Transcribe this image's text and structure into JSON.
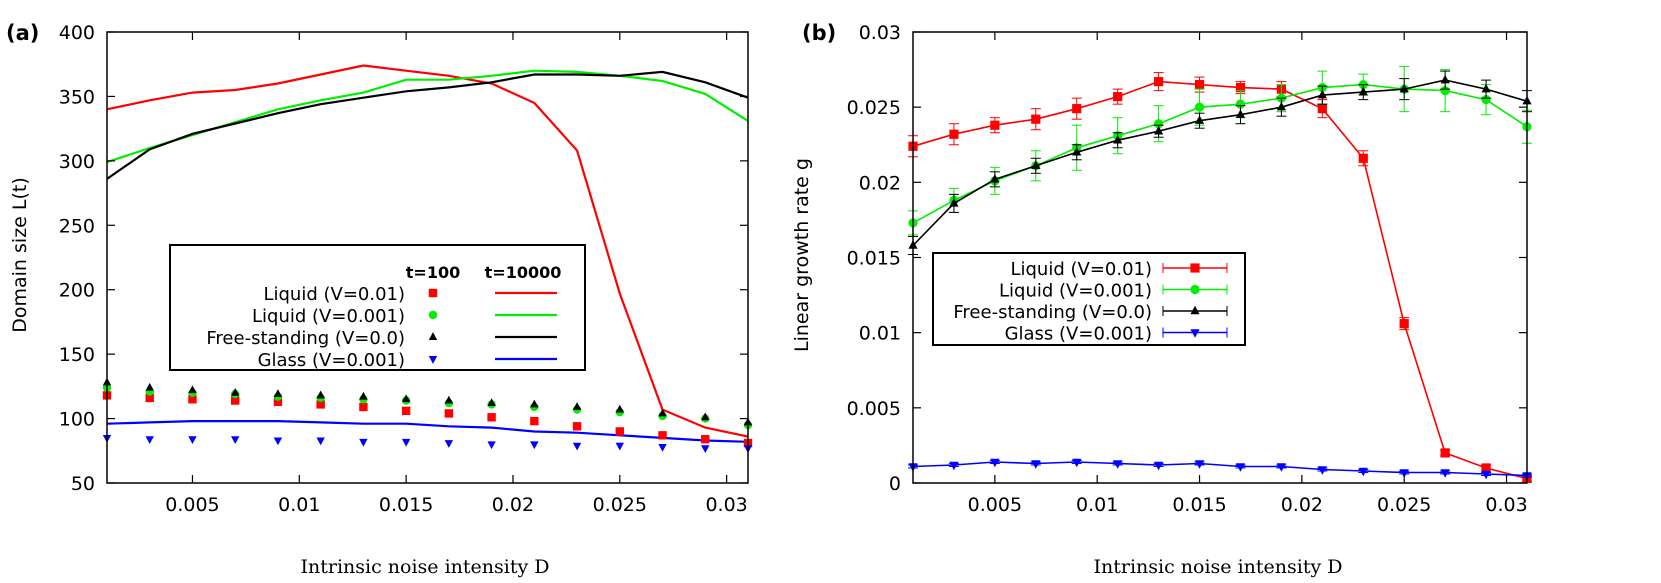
{
  "chart_data": [
    {
      "panel_label": "(a)",
      "type": "line",
      "xlabel": "Intrinsic noise intensity D",
      "ylabel": "Domain size L(t)",
      "xlim": [
        0.001,
        0.031
      ],
      "ylim": [
        50,
        400
      ],
      "xticks": [
        0.005,
        0.01,
        0.015,
        0.02,
        0.025,
        0.03
      ],
      "xtick_labels": [
        "0.005",
        "0.01",
        "0.015",
        "0.02",
        "0.025",
        "0.03"
      ],
      "yticks": [
        50,
        100,
        150,
        200,
        250,
        300,
        350,
        400
      ],
      "ytick_labels": [
        "50",
        "100",
        "150",
        "200",
        "250",
        "300",
        "350",
        "400"
      ],
      "legend_headers": {
        "points": "t=100",
        "lines": "t=10000"
      },
      "x_points": [
        0.001,
        0.003,
        0.005,
        0.007,
        0.009,
        0.011,
        0.013,
        0.015,
        0.017,
        0.019,
        0.021,
        0.023,
        0.025,
        0.027,
        0.029,
        0.031
      ],
      "x_lines": [
        0.001,
        0.003,
        0.005,
        0.007,
        0.009,
        0.011,
        0.013,
        0.015,
        0.017,
        0.019,
        0.021,
        0.023,
        0.025,
        0.027,
        0.029,
        0.031
      ],
      "series": [
        {
          "name": "Liquid (V=0.01)",
          "color": "#ff0000",
          "marker": "square",
          "points_t100": [
            118,
            116,
            115,
            114,
            113,
            111,
            109,
            106,
            104,
            101,
            98,
            94,
            90,
            87,
            84,
            81
          ],
          "line_t10000": [
            340,
            347,
            353,
            355,
            360,
            367,
            374,
            370,
            366,
            360,
            345,
            308,
            197,
            107,
            93,
            86
          ]
        },
        {
          "name": "Liquid (V=0.001)",
          "color": "#00ee00",
          "marker": "circle",
          "points_t100": [
            124,
            121,
            120,
            119,
            117,
            116,
            115,
            114,
            112,
            111,
            109,
            107,
            105,
            102,
            100,
            95
          ],
          "line_t10000": [
            299,
            310,
            320,
            330,
            340,
            347,
            353,
            363,
            363,
            366,
            370,
            369,
            366,
            362,
            352,
            331
          ]
        },
        {
          "name": "Free-standing (V=0.0)",
          "color": "#000000",
          "marker": "triangle-up",
          "points_t100": [
            128,
            124,
            122,
            120,
            119,
            118,
            117,
            115,
            114,
            112,
            111,
            109,
            107,
            104,
            101,
            97
          ],
          "line_t10000": [
            286,
            309,
            321,
            329,
            337,
            344,
            349,
            354,
            357,
            361,
            367,
            367,
            366,
            369,
            361,
            349
          ]
        },
        {
          "name": "Glass (V=0.001)",
          "color": "#0000ff",
          "marker": "triangle-down",
          "points_t100": [
            85,
            84,
            84,
            84,
            83,
            83,
            82,
            82,
            81,
            80,
            80,
            79,
            79,
            78,
            77,
            77
          ],
          "line_t10000": [
            96,
            97,
            98,
            98,
            98,
            97,
            96,
            96,
            94,
            93,
            90,
            89,
            87,
            85,
            83,
            82
          ]
        }
      ]
    },
    {
      "panel_label": "(b)",
      "type": "line",
      "xlabel": "Intrinsic noise intensity D",
      "ylabel": "Linear growth rate g",
      "xlim": [
        0.001,
        0.031
      ],
      "ylim": [
        0,
        0.03
      ],
      "xticks": [
        0.005,
        0.01,
        0.015,
        0.02,
        0.025,
        0.03
      ],
      "xtick_labels": [
        "0.005",
        "0.01",
        "0.015",
        "0.02",
        "0.025",
        "0.03"
      ],
      "yticks": [
        0,
        0.005,
        0.01,
        0.015,
        0.02,
        0.025,
        0.03
      ],
      "ytick_labels": [
        "0",
        "0.005",
        "0.01",
        "0.015",
        "0.02",
        "0.025",
        "0.03"
      ],
      "x": [
        0.001,
        0.003,
        0.005,
        0.007,
        0.009,
        0.011,
        0.013,
        0.015,
        0.017,
        0.019,
        0.021,
        0.023,
        0.025,
        0.027,
        0.029,
        0.031
      ],
      "series": [
        {
          "name": "Liquid (V=0.01)",
          "color": "#ff0000",
          "marker": "square",
          "values": [
            0.0224,
            0.0232,
            0.0238,
            0.0242,
            0.0249,
            0.0257,
            0.0267,
            0.0265,
            0.0263,
            0.0262,
            0.0249,
            0.0216,
            0.0106,
            0.002,
            0.001,
            0.0003
          ],
          "errors": [
            0.0007,
            0.0007,
            0.0005,
            0.0007,
            0.0007,
            0.0005,
            0.0006,
            0.0005,
            0.0004,
            0.0005,
            0.0006,
            0.0005,
            0.0004,
            0.0002,
            0.0002,
            0.0002
          ]
        },
        {
          "name": "Liquid (V=0.001)",
          "color": "#00ee00",
          "marker": "circle",
          "values": [
            0.0173,
            0.0188,
            0.0201,
            0.0211,
            0.0223,
            0.0231,
            0.0239,
            0.025,
            0.0252,
            0.0256,
            0.0263,
            0.0265,
            0.0262,
            0.0261,
            0.0255,
            0.0237
          ],
          "errors": [
            0.0008,
            0.0008,
            0.0009,
            0.001,
            0.0015,
            0.0012,
            0.0012,
            0.0012,
            0.0009,
            0.0009,
            0.0011,
            0.0007,
            0.0015,
            0.0014,
            0.001,
            0.0011
          ]
        },
        {
          "name": "Free-standing (V=0.0)",
          "color": "#000000",
          "marker": "triangle-up",
          "values": [
            0.0158,
            0.0186,
            0.0202,
            0.0211,
            0.022,
            0.0228,
            0.0234,
            0.0241,
            0.0245,
            0.025,
            0.0258,
            0.026,
            0.0262,
            0.0268,
            0.0262,
            0.0254
          ],
          "errors": [
            0.0006,
            0.0006,
            0.0005,
            0.0005,
            0.0005,
            0.0005,
            0.0004,
            0.0005,
            0.0006,
            0.0006,
            0.0006,
            0.0005,
            0.0007,
            0.0006,
            0.0006,
            0.0007
          ]
        },
        {
          "name": "Glass (V=0.001)",
          "color": "#0000ff",
          "marker": "triangle-down",
          "values": [
            0.0011,
            0.0012,
            0.0014,
            0.0013,
            0.0014,
            0.0013,
            0.0012,
            0.0013,
            0.0011,
            0.0011,
            0.0009,
            0.0008,
            0.0007,
            0.0007,
            0.0006,
            0.0005
          ],
          "errors": [
            0.0001,
            0.0001,
            0.0001,
            0.0001,
            0.0001,
            0.0001,
            0.0001,
            0.0001,
            0.0001,
            0.0001,
            0.0001,
            0.0001,
            0.0001,
            0.0001,
            0.0001,
            0.0001
          ]
        }
      ]
    }
  ]
}
